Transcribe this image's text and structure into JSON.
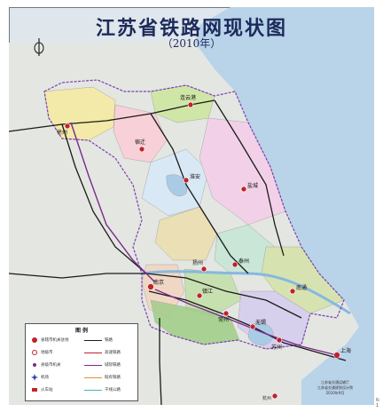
{
  "title": "江苏省铁路网现状图",
  "subtitle": "（2010年）",
  "legend": {
    "title": "图 例",
    "items": [
      {
        "label": "省辖市机关驻地",
        "kind": "capital"
      },
      {
        "label": "铁路",
        "kind": "line-black"
      },
      {
        "label": "地级市",
        "kind": "city"
      },
      {
        "label": "高速铁路",
        "kind": "line-red"
      },
      {
        "label": "县级市机关",
        "kind": "county"
      },
      {
        "label": "城际铁路",
        "kind": "line-purple"
      },
      {
        "label": "机场",
        "kind": "airport"
      },
      {
        "label": "既有铁路",
        "kind": "line-orange"
      },
      {
        "label": "火车站",
        "kind": "station"
      },
      {
        "label": "干线公路",
        "kind": "line-cyan"
      }
    ]
  },
  "cities": [
    {
      "name": "徐州",
      "major": true
    },
    {
      "name": "连云港",
      "major": true
    },
    {
      "name": "宿迁",
      "major": true
    },
    {
      "name": "淮安",
      "major": true
    },
    {
      "name": "盐城",
      "major": true
    },
    {
      "name": "扬州",
      "major": true
    },
    {
      "name": "泰州",
      "major": true
    },
    {
      "name": "南通",
      "major": true
    },
    {
      "name": "南京",
      "major": true
    },
    {
      "name": "镇江",
      "major": true
    },
    {
      "name": "常州",
      "major": true
    },
    {
      "name": "无锡",
      "major": true
    },
    {
      "name": "苏州",
      "major": true
    },
    {
      "name": "上海",
      "major": true
    },
    {
      "name": "杭州",
      "major": false
    }
  ],
  "credit": [
    "江苏省交通运输厅",
    "江苏省交通规划设计院",
    "2010年9月"
  ],
  "corner_mark": "6-1",
  "colors": {
    "sea": "#b9d3e9",
    "land": "#dfe3e0",
    "border": "#7a3fb0",
    "railway": "#1a1a1a",
    "rail_main": "#7b2b8f",
    "title": "#1c2b5a"
  }
}
